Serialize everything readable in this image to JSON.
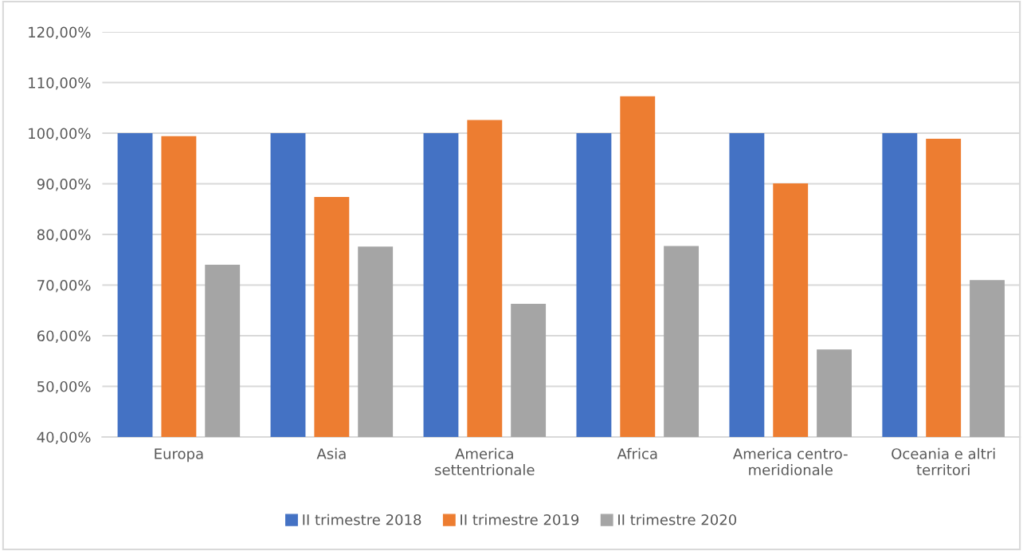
{
  "chart_data": {
    "type": "bar",
    "categories": [
      "Europa",
      "Asia",
      "America\nsettentrionale",
      "Africa",
      "America centro-\nmeridionale",
      "Oceania e altri\nterritori"
    ],
    "series": [
      {
        "name": "II trimestre 2018",
        "color": "#4472c4",
        "values": [
          100,
          100,
          100,
          100,
          100,
          100
        ]
      },
      {
        "name": "II trimestre 2019",
        "color": "#ed7d31",
        "values": [
          99.4,
          87.4,
          102.6,
          107.3,
          90.1,
          98.9
        ]
      },
      {
        "name": "II trimestre 2020",
        "color": "#a5a5a5",
        "values": [
          74.0,
          77.6,
          66.3,
          77.7,
          57.3,
          71.0
        ]
      }
    ],
    "ylim": [
      40,
      120
    ],
    "yticks": [
      {
        "value": 40,
        "label": "40,00%"
      },
      {
        "value": 50,
        "label": "50,00%"
      },
      {
        "value": 60,
        "label": "60,00%"
      },
      {
        "value": 70,
        "label": "70,00%"
      },
      {
        "value": 80,
        "label": "80,00%"
      },
      {
        "value": 90,
        "label": "90,00%"
      },
      {
        "value": 100,
        "label": "100,00%"
      },
      {
        "value": 110,
        "label": "110,00%"
      },
      {
        "value": 120,
        "label": "120,00%"
      }
    ],
    "grid": "y",
    "legend": "bottom"
  }
}
